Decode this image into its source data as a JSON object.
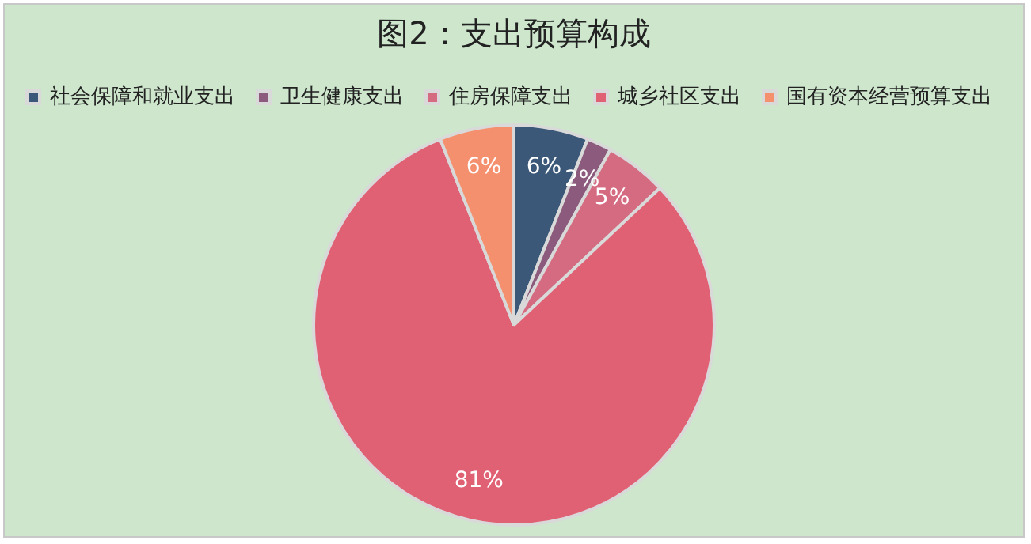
{
  "chart_data": {
    "type": "pie",
    "title": "图2：支出预算构成",
    "categories": [
      "社会保障和就业支出",
      "卫生健康支出",
      "住房保障支出",
      "城乡社区支出",
      "国有资本经营预算支出"
    ],
    "values": [
      6,
      2,
      5,
      81,
      6
    ],
    "value_labels": [
      "6%",
      "2%",
      "5%",
      "81%",
      "6%"
    ],
    "colors": [
      "#3b5878",
      "#8c5a7c",
      "#d56b80",
      "#e06074",
      "#f4906e"
    ],
    "legend": "top"
  }
}
